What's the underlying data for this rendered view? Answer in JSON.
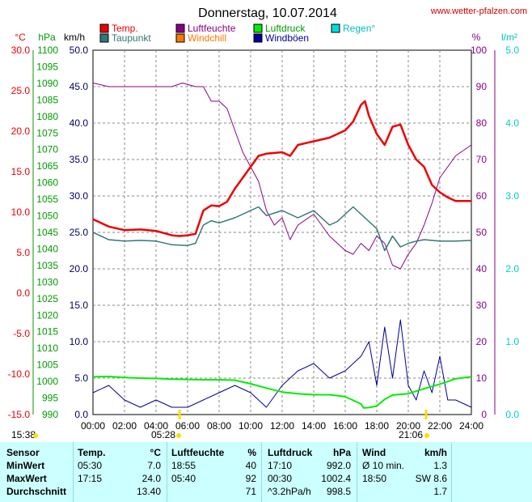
{
  "title": "Donnerstag, 10.07.2014",
  "site": "www.wetter-pfalzen.com",
  "colors": {
    "temp": "#ee0000",
    "taupunkt": "#337777",
    "luftfeuchte": "#880088",
    "windchill": "#ff7700",
    "luftdruck": "#00ee00",
    "windboeen": "#000099",
    "regen": "#00dddd",
    "grid": "#888888"
  },
  "legend": [
    {
      "label": "Temp.",
      "color": "#ee0000"
    },
    {
      "label": "Luftfeuchte",
      "color": "#880088"
    },
    {
      "label": "Luftdruck",
      "color": "#00ee00"
    },
    {
      "label": "Regen°",
      "color": "#00dddd"
    },
    {
      "label": "Taupunkt",
      "color": "#337777"
    },
    {
      "label": "Windchill",
      "color": "#ff7700"
    },
    {
      "label": "Windböen",
      "color": "#000099"
    }
  ],
  "axis_units": {
    "temp": "°C",
    "hpa": "hPa",
    "kmh": "km/h",
    "pct": "%",
    "rain": "l/m²"
  },
  "chart_data": {
    "type": "line",
    "x_ticks": [
      "00:00",
      "02:00",
      "04:00",
      "06:00",
      "08:00",
      "10:00",
      "12:00",
      "14:00",
      "16:00",
      "18:00",
      "20:00",
      "22:00",
      "24:00"
    ],
    "y_axes": {
      "temp": {
        "range": [
          -15,
          30
        ],
        "ticks": [
          "30.0",
          "25.0",
          "20.0",
          "15.0",
          "10.0",
          "5.0",
          "0.0",
          "-5.0",
          "-10.0",
          "-15.0"
        ]
      },
      "hpa": {
        "range": [
          990,
          1100
        ],
        "ticks": [
          "1100",
          "1095",
          "1090",
          "1085",
          "1080",
          "1075",
          "1070",
          "1065",
          "1060",
          "1055",
          "1050",
          "1045",
          "1040",
          "1035",
          "1030",
          "1025",
          "1020",
          "1015",
          "1010",
          "1005",
          "1000",
          "995",
          "990"
        ]
      },
      "kmh": {
        "range": [
          0,
          50
        ],
        "ticks": [
          "50.0",
          "45.0",
          "40.0",
          "35.0",
          "30.0",
          "25.0",
          "20.0",
          "15.0",
          "10.0",
          "5.0",
          "0.0"
        ]
      },
      "pct": {
        "range": [
          0,
          100
        ],
        "ticks": [
          "100",
          "90",
          "80",
          "70",
          "60",
          "50",
          "40",
          "30",
          "20",
          "10",
          "0"
        ]
      },
      "rain": {
        "range": [
          0,
          5
        ],
        "ticks": [
          "5.0",
          "4.0",
          "3.0",
          "2.0",
          "1.0",
          "0.0"
        ]
      }
    },
    "series": [
      {
        "name": "Temp.",
        "axis": "kmh",
        "x": [
          0,
          1,
          2,
          3,
          4,
          5,
          5.5,
          6,
          6.5,
          7,
          7.5,
          8,
          8.5,
          9,
          9.5,
          10,
          10.5,
          11,
          12,
          12.5,
          13,
          14,
          15,
          15.5,
          16,
          16.5,
          17,
          17.25,
          17.5,
          18,
          18.5,
          19,
          19.5,
          20,
          20.5,
          21,
          21.5,
          22,
          22.5,
          23,
          24
        ],
        "y": [
          26.8,
          25.8,
          25.3,
          25.4,
          25.2,
          24.6,
          24.5,
          24.6,
          24.8,
          28.0,
          28.7,
          28.6,
          29.2,
          31.0,
          32.5,
          34.0,
          35.5,
          35.8,
          36.0,
          35.5,
          37.0,
          37.5,
          38.0,
          38.5,
          39.0,
          40.2,
          42.5,
          43.0,
          41.0,
          38.5,
          37.0,
          39.5,
          39.8,
          37.0,
          35.0,
          34.0,
          31.5,
          30.5,
          29.8,
          29.3,
          29.3
        ]
      },
      {
        "name": "Taupunkt",
        "axis": "kmh",
        "x": [
          0,
          1,
          2,
          3,
          4,
          5,
          6,
          6.5,
          7,
          7.5,
          8,
          9,
          10,
          10.5,
          11,
          12,
          13,
          14,
          15,
          15.5,
          16,
          16.5,
          17,
          17.5,
          18,
          18.5,
          19,
          19.5,
          20,
          20.5,
          21,
          22,
          23,
          24
        ],
        "y": [
          25.0,
          24.0,
          23.8,
          23.9,
          23.8,
          23.3,
          23.2,
          23.5,
          26.0,
          26.6,
          26.3,
          27.0,
          28.0,
          28.5,
          27.3,
          28.0,
          27.0,
          28.0,
          26.0,
          26.5,
          27.5,
          28.5,
          27.5,
          26.5,
          25.5,
          22.5,
          24.5,
          23.0,
          23.5,
          23.8,
          24.0,
          23.8,
          23.8,
          23.9
        ]
      },
      {
        "name": "Luftfeuchte",
        "axis": "pct",
        "x": [
          0,
          1,
          2,
          3,
          4,
          5,
          5.67,
          6.5,
          7,
          7.5,
          8,
          8.5,
          9,
          9.5,
          10,
          10.5,
          11,
          11.5,
          12,
          12.5,
          13,
          14,
          15,
          15.5,
          16,
          16.5,
          17,
          17.5,
          18,
          18.5,
          19,
          19.5,
          20,
          20.5,
          21,
          21.5,
          22,
          22.5,
          23,
          24
        ],
        "y": [
          91,
          90,
          90,
          90,
          90,
          90,
          91,
          90,
          90,
          86,
          86,
          84,
          78,
          72,
          68,
          64,
          56,
          52,
          54,
          48,
          52,
          55,
          49,
          47,
          45,
          44,
          47,
          45,
          49,
          47,
          41,
          40,
          44,
          47,
          52,
          58,
          65,
          68,
          71,
          74
        ]
      },
      {
        "name": "Luftdruck",
        "axis": "hpa",
        "x": [
          0,
          1,
          2,
          3,
          4,
          5,
          6,
          7,
          8,
          9,
          10,
          11,
          12,
          13,
          14,
          15,
          16,
          17,
          17.17,
          17.5,
          18,
          18.5,
          19,
          20,
          21,
          22,
          23,
          24
        ],
        "y": [
          1001.4,
          1001.5,
          1001.2,
          1001.0,
          1000.9,
          1000.7,
          1000.6,
          1000.5,
          1000.5,
          1000.4,
          999.3,
          998.0,
          996.8,
          996.3,
          996.0,
          996.0,
          995.4,
          993.2,
          992.0,
          992.1,
          992.6,
          994.6,
          995.9,
          996.3,
          997.8,
          999.2,
          1000.8,
          1001.4
        ]
      },
      {
        "name": "Windböen",
        "axis": "kmh",
        "x": [
          0,
          1,
          2,
          3,
          4,
          5,
          6,
          7,
          8,
          9,
          10,
          11,
          12,
          13,
          14,
          15,
          16,
          17,
          17.5,
          18,
          18.5,
          19,
          19.5,
          20,
          20.5,
          21,
          21.5,
          22,
          22.5,
          23,
          24
        ],
        "y": [
          3,
          4,
          2,
          1,
          2,
          1,
          1,
          2,
          3,
          4,
          3,
          1,
          4,
          6,
          7,
          5,
          6,
          8,
          10,
          4,
          12,
          5,
          13,
          4,
          2,
          6,
          3,
          8,
          2,
          2,
          1
        ]
      }
    ]
  },
  "table": {
    "headers": [
      "Sensor",
      "Temp.",
      "°C",
      "Luftfeuchte",
      "%",
      "Luftdruck",
      "hPa",
      "Wind",
      "km/h"
    ],
    "rows": [
      [
        "MinWert",
        "05:30",
        "7.0",
        "18:55",
        "40",
        "17:10",
        "992.0",
        "Ø 10 min.",
        "1.3"
      ],
      [
        "MaxWert",
        "17:15",
        "24.0",
        "05:40",
        "92",
        "00:30",
        "1002.4",
        "18:50",
        "SW 8.6"
      ],
      [
        "Durchschnitt",
        "",
        "13.40",
        "",
        "71",
        "^3.2hPa/h",
        "998.5",
        "",
        "1.7"
      ]
    ]
  },
  "markers": {
    "sunrise": "05:28",
    "sunset": "21:06",
    "daylight_start_label": "15:38"
  }
}
